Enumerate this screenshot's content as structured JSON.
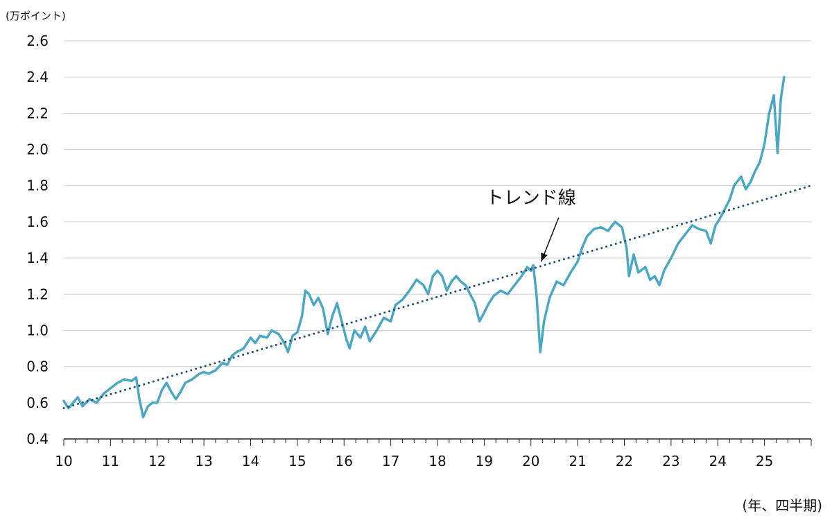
{
  "chart_data": {
    "type": "line",
    "ylabel": "(万ポイント)",
    "xlabel": "(年、四半期)",
    "ylim": [
      0.4,
      2.6
    ],
    "yticks": [
      "0.4",
      "0.6",
      "0.8",
      "1.0",
      "1.2",
      "1.4",
      "1.6",
      "1.8",
      "2.0",
      "2.2",
      "2.4",
      "2.6"
    ],
    "xlim": [
      2010,
      2026
    ],
    "xticks": [
      "10",
      "11",
      "12",
      "13",
      "14",
      "15",
      "16",
      "17",
      "18",
      "19",
      "20",
      "21",
      "22",
      "23",
      "24",
      "25"
    ],
    "grid": "horizontal",
    "series": [
      {
        "color": "#4aa8c4",
        "style": "solid",
        "points": [
          [
            2010.0,
            0.61
          ],
          [
            2010.1,
            0.57
          ],
          [
            2010.2,
            0.6
          ],
          [
            2010.3,
            0.63
          ],
          [
            2010.4,
            0.58
          ],
          [
            2010.55,
            0.62
          ],
          [
            2010.7,
            0.6
          ],
          [
            2010.85,
            0.65
          ],
          [
            2011.0,
            0.68
          ],
          [
            2011.15,
            0.71
          ],
          [
            2011.3,
            0.73
          ],
          [
            2011.45,
            0.72
          ],
          [
            2011.55,
            0.74
          ],
          [
            2011.62,
            0.62
          ],
          [
            2011.7,
            0.52
          ],
          [
            2011.8,
            0.58
          ],
          [
            2011.9,
            0.6
          ],
          [
            2012.0,
            0.6
          ],
          [
            2012.1,
            0.67
          ],
          [
            2012.2,
            0.71
          ],
          [
            2012.3,
            0.66
          ],
          [
            2012.4,
            0.62
          ],
          [
            2012.5,
            0.66
          ],
          [
            2012.6,
            0.71
          ],
          [
            2012.75,
            0.73
          ],
          [
            2012.9,
            0.76
          ],
          [
            2013.0,
            0.77
          ],
          [
            2013.1,
            0.76
          ],
          [
            2013.25,
            0.78
          ],
          [
            2013.4,
            0.82
          ],
          [
            2013.5,
            0.81
          ],
          [
            2013.6,
            0.86
          ],
          [
            2013.7,
            0.88
          ],
          [
            2013.85,
            0.9
          ],
          [
            2014.0,
            0.96
          ],
          [
            2014.1,
            0.93
          ],
          [
            2014.2,
            0.97
          ],
          [
            2014.35,
            0.96
          ],
          [
            2014.45,
            1.0
          ],
          [
            2014.6,
            0.98
          ],
          [
            2014.72,
            0.93
          ],
          [
            2014.8,
            0.88
          ],
          [
            2014.9,
            0.97
          ],
          [
            2015.0,
            0.99
          ],
          [
            2015.1,
            1.08
          ],
          [
            2015.17,
            1.22
          ],
          [
            2015.25,
            1.2
          ],
          [
            2015.35,
            1.14
          ],
          [
            2015.45,
            1.18
          ],
          [
            2015.55,
            1.12
          ],
          [
            2015.65,
            0.98
          ],
          [
            2015.75,
            1.08
          ],
          [
            2015.85,
            1.15
          ],
          [
            2015.95,
            1.05
          ],
          [
            2016.05,
            0.95
          ],
          [
            2016.12,
            0.9
          ],
          [
            2016.22,
            1.0
          ],
          [
            2016.35,
            0.96
          ],
          [
            2016.45,
            1.02
          ],
          [
            2016.55,
            0.94
          ],
          [
            2016.7,
            1.0
          ],
          [
            2016.85,
            1.07
          ],
          [
            2017.0,
            1.05
          ],
          [
            2017.1,
            1.14
          ],
          [
            2017.25,
            1.17
          ],
          [
            2017.4,
            1.22
          ],
          [
            2017.55,
            1.28
          ],
          [
            2017.7,
            1.25
          ],
          [
            2017.8,
            1.2
          ],
          [
            2017.9,
            1.3
          ],
          [
            2018.0,
            1.33
          ],
          [
            2018.1,
            1.3
          ],
          [
            2018.2,
            1.22
          ],
          [
            2018.3,
            1.27
          ],
          [
            2018.4,
            1.3
          ],
          [
            2018.5,
            1.27
          ],
          [
            2018.6,
            1.25
          ],
          [
            2018.7,
            1.2
          ],
          [
            2018.8,
            1.15
          ],
          [
            2018.9,
            1.05
          ],
          [
            2019.0,
            1.1
          ],
          [
            2019.1,
            1.15
          ],
          [
            2019.2,
            1.19
          ],
          [
            2019.35,
            1.22
          ],
          [
            2019.5,
            1.2
          ],
          [
            2019.65,
            1.25
          ],
          [
            2019.8,
            1.3
          ],
          [
            2019.92,
            1.35
          ],
          [
            2020.0,
            1.33
          ],
          [
            2020.05,
            1.36
          ],
          [
            2020.12,
            1.2
          ],
          [
            2020.2,
            0.88
          ],
          [
            2020.28,
            1.05
          ],
          [
            2020.4,
            1.18
          ],
          [
            2020.55,
            1.27
          ],
          [
            2020.7,
            1.25
          ],
          [
            2020.85,
            1.32
          ],
          [
            2021.0,
            1.38
          ],
          [
            2021.1,
            1.46
          ],
          [
            2021.2,
            1.52
          ],
          [
            2021.35,
            1.56
          ],
          [
            2021.5,
            1.57
          ],
          [
            2021.65,
            1.55
          ],
          [
            2021.8,
            1.6
          ],
          [
            2021.95,
            1.57
          ],
          [
            2022.05,
            1.45
          ],
          [
            2022.1,
            1.3
          ],
          [
            2022.2,
            1.42
          ],
          [
            2022.3,
            1.32
          ],
          [
            2022.45,
            1.35
          ],
          [
            2022.55,
            1.28
          ],
          [
            2022.65,
            1.3
          ],
          [
            2022.75,
            1.25
          ],
          [
            2022.85,
            1.33
          ],
          [
            2023.0,
            1.4
          ],
          [
            2023.15,
            1.48
          ],
          [
            2023.3,
            1.53
          ],
          [
            2023.45,
            1.58
          ],
          [
            2023.6,
            1.56
          ],
          [
            2023.75,
            1.55
          ],
          [
            2023.85,
            1.48
          ],
          [
            2023.95,
            1.58
          ],
          [
            2024.05,
            1.62
          ],
          [
            2024.15,
            1.67
          ],
          [
            2024.25,
            1.72
          ],
          [
            2024.35,
            1.8
          ],
          [
            2024.5,
            1.85
          ],
          [
            2024.6,
            1.78
          ],
          [
            2024.7,
            1.82
          ],
          [
            2024.8,
            1.88
          ],
          [
            2024.9,
            1.93
          ],
          [
            2025.0,
            2.03
          ],
          [
            2025.1,
            2.2
          ],
          [
            2025.2,
            2.3
          ],
          [
            2025.28,
            1.98
          ],
          [
            2025.35,
            2.28
          ],
          [
            2025.42,
            2.4
          ]
        ]
      },
      {
        "color": "#1f4e79",
        "style": "dotted",
        "points": [
          [
            2010.0,
            0.57
          ],
          [
            2026.0,
            1.8
          ]
        ]
      }
    ],
    "annotations": [
      {
        "text": "トレンド線",
        "x": 2020.0,
        "y": 1.7,
        "arrow_to": [
          2020.22,
          1.38
        ]
      }
    ]
  }
}
